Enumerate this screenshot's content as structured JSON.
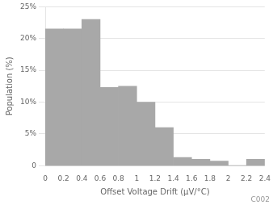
{
  "chart_data": {
    "type": "histogram",
    "xlabel": "Offset Voltage Drift (μV/°C)",
    "ylabel": "Population (%)",
    "bins": [
      0.0,
      0.2,
      0.4,
      0.6,
      0.8,
      1.0,
      1.2,
      1.4,
      1.6,
      1.8,
      2.0,
      2.2,
      2.4
    ],
    "values": [
      21.5,
      21.5,
      23.0,
      12.3,
      12.5,
      10.0,
      6.0,
      1.3,
      1.0,
      0.7,
      0.0,
      1.0
    ],
    "color": "#a8a8a8",
    "xlim": [
      0,
      2.4
    ],
    "ylim": [
      0,
      25
    ],
    "xticks": [
      0.0,
      0.2,
      0.4,
      0.6,
      0.8,
      1.0,
      1.2,
      1.4,
      1.6,
      1.8,
      2.0,
      2.2,
      2.4
    ],
    "yticks": [
      0,
      {
        "value": 5,
        "label": "5%"
      },
      {
        "value": 10,
        "label": "10%"
      },
      {
        "value": 15,
        "label": "15%"
      },
      {
        "value": 20,
        "label": "20%"
      },
      {
        "value": 25,
        "label": "25%"
      }
    ],
    "grid": "y",
    "annotations": [
      "C002"
    ]
  }
}
